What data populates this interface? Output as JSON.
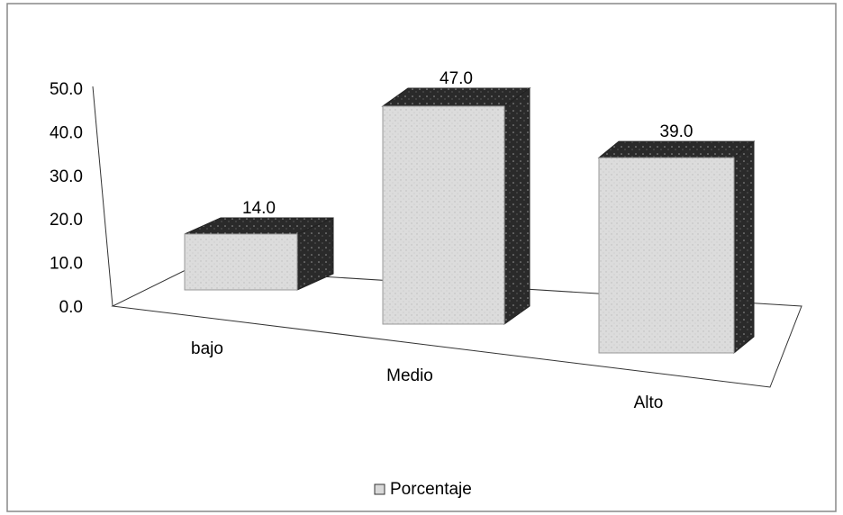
{
  "chart_data": {
    "type": "bar3d",
    "categories": [
      "bajo",
      "Medio",
      "Alto"
    ],
    "series": [
      {
        "name": "Porcentaje",
        "color": "#d9d9d9",
        "values": [
          14,
          47,
          39
        ],
        "value_labels": [
          "14.0",
          "47.0",
          "39.0"
        ]
      }
    ],
    "ylim": [
      0,
      50
    ],
    "yticks": [
      {
        "value": 0,
        "label": "0.0"
      },
      {
        "value": 10,
        "label": "10.0"
      },
      {
        "value": 20,
        "label": "20.0"
      },
      {
        "value": 30,
        "label": "30.0"
      },
      {
        "value": 40,
        "label": "40.0"
      },
      {
        "value": 50,
        "label": "50.0"
      }
    ],
    "legend": "bottom",
    "grid": false
  }
}
